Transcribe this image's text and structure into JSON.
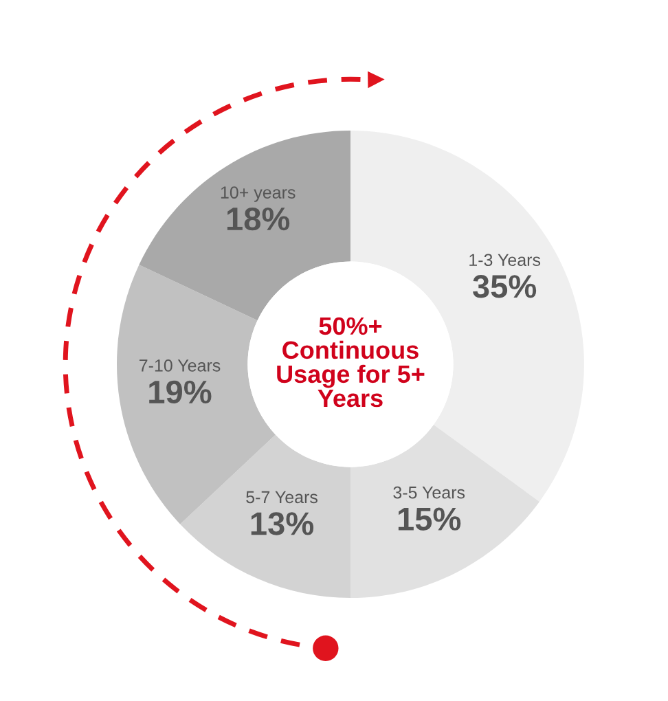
{
  "chart_data": {
    "type": "donut",
    "categories": [
      "1-3 Years",
      "3-5 Years",
      "5-7 Years",
      "7-10 Years",
      "10+ years"
    ],
    "values": [
      35,
      15,
      13,
      19,
      18
    ],
    "value_labels": [
      "35%",
      "15%",
      "13%",
      "19%",
      "18%"
    ],
    "colors": [
      "#efefef",
      "#e1e1e1",
      "#d3d3d3",
      "#c1c1c1",
      "#a9a9a9"
    ],
    "annotations": [
      "50%+\nContinuous\nUsage for 5+\nYears"
    ]
  }
}
